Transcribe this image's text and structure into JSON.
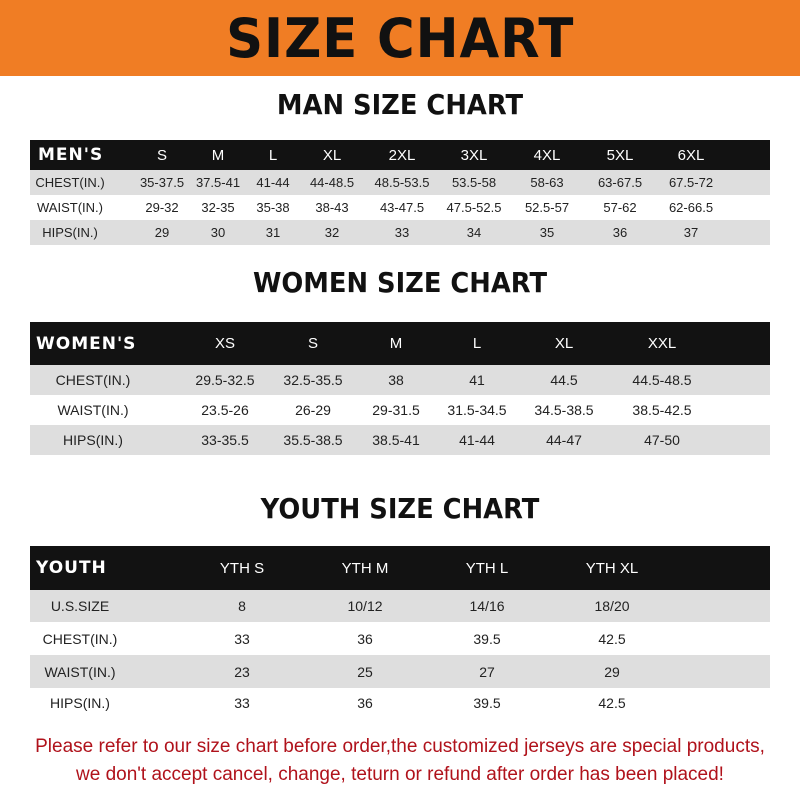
{
  "title": "SIZE CHART",
  "men": {
    "heading": "MAN SIZE CHART",
    "header": [
      "MEN'S",
      "S",
      "M",
      "L",
      "XL",
      "2XL",
      "3XL",
      "4XL",
      "5XL",
      "6XL"
    ],
    "rows": [
      [
        "CHEST(IN.)",
        "35-37.5",
        "37.5-41",
        "41-44",
        "44-48.5",
        "48.5-53.5",
        "53.5-58",
        "58-63",
        "63-67.5",
        "67.5-72"
      ],
      [
        "WAIST(IN.)",
        "29-32",
        "32-35",
        "35-38",
        "38-43",
        "43-47.5",
        "47.5-52.5",
        "52.5-57",
        "57-62",
        "62-66.5"
      ],
      [
        "HIPS(IN.)",
        "29",
        "30",
        "31",
        "32",
        "33",
        "34",
        "35",
        "36",
        "37"
      ]
    ]
  },
  "women": {
    "heading": "WOMEN SIZE CHART",
    "header": [
      "WOMEN'S",
      "XS",
      "S",
      "M",
      "L",
      "XL",
      "XXL"
    ],
    "rows": [
      [
        "CHEST(IN.)",
        "29.5-32.5",
        "32.5-35.5",
        "38",
        "41",
        "44.5",
        "44.5-48.5"
      ],
      [
        "WAIST(IN.)",
        "23.5-26",
        "26-29",
        "29-31.5",
        "31.5-34.5",
        "34.5-38.5",
        "38.5-42.5"
      ],
      [
        "HIPS(IN.)",
        "33-35.5",
        "35.5-38.5",
        "38.5-41",
        "41-44",
        "44-47",
        "47-50"
      ]
    ]
  },
  "youth": {
    "heading": "YOUTH SIZE CHART",
    "header": [
      "YOUTH",
      "YTH S",
      "YTH M",
      "YTH L",
      "YTH XL"
    ],
    "rows": [
      [
        "U.S.SIZE",
        "8",
        "10/12",
        "14/16",
        "18/20"
      ],
      [
        "CHEST(IN.)",
        "33",
        "36",
        "39.5",
        "42.5"
      ],
      [
        "WAIST(IN.)",
        "23",
        "25",
        "27",
        "29"
      ],
      [
        "HIPS(IN.)",
        "33",
        "36",
        "39.5",
        "42.5"
      ]
    ]
  },
  "footer": {
    "line1": "Please refer to our size chart before order,the customized jerseys are special products,",
    "line2": "we don't accept cancel, change, teturn or refund after order has been placed!"
  },
  "colors": {
    "banner": "#f07d24",
    "header_row": "#121212",
    "stripe": "#dedede",
    "notice": "#b0121b"
  }
}
